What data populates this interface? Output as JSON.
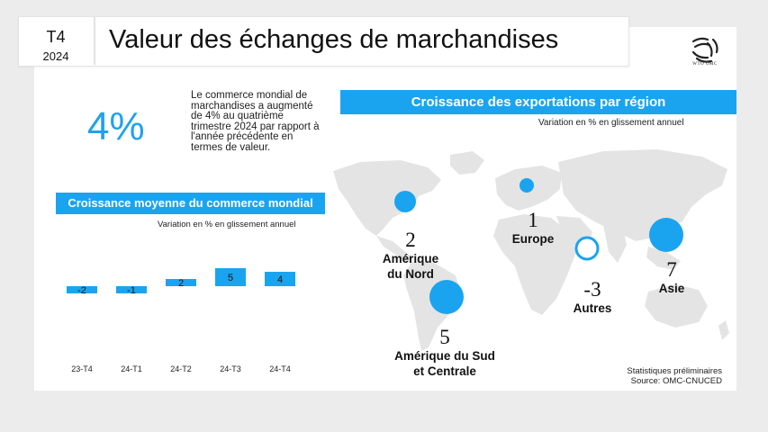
{
  "header": {
    "quarter": "T4",
    "year": "2024",
    "title": "Valeur des échanges de marchandises",
    "logo_text": "WTO OMC"
  },
  "highlight": {
    "value": "4%",
    "text": "Le commerce mondial de marchandises a augmenté de 4% au quatrième trimestre 2024 par rapport à l'année précédente en termes de valeur."
  },
  "left_panel": {
    "title": "Croissance moyenne du commerce mondial",
    "subtitle": "Variation en % en glissement annuel"
  },
  "right_panel": {
    "title": "Croissance des exportations par région",
    "subtitle": "Variation en % en glissement annuel"
  },
  "colors": {
    "accent": "#1aa4ef",
    "map": "#e4e4e4",
    "text": "#111111"
  },
  "chart_data": [
    {
      "type": "bar",
      "title": "Croissance moyenne du commerce mondial",
      "subtitle": "Variation en % en glissement annuel",
      "categories": [
        "23-T4",
        "24-T1",
        "24-T2",
        "24-T3",
        "24-T4"
      ],
      "values": [
        -2,
        -1,
        2,
        5,
        4
      ],
      "grid": false
    },
    {
      "type": "scatter",
      "title": "Croissance des exportations par région",
      "subtitle": "Variation en % en glissement annuel",
      "series": [
        {
          "name": "Amérique du Nord",
          "value": 2
        },
        {
          "name": "Europe",
          "value": 1
        },
        {
          "name": "Amérique du Sud et Centrale",
          "value": 5
        },
        {
          "name": "Autres",
          "value": -3
        },
        {
          "name": "Asie",
          "value": 7
        }
      ]
    }
  ],
  "regions": {
    "north_america": {
      "value": "2",
      "name_line1": "Amérique",
      "name_line2": "du Nord"
    },
    "europe": {
      "value": "1",
      "name_line1": "Europe"
    },
    "south_america": {
      "value": "5",
      "name_line1": "Amérique du Sud",
      "name_line2": "et Centrale"
    },
    "others": {
      "value": "-3",
      "name_line1": "Autres"
    },
    "asia": {
      "value": "7",
      "name_line1": "Asie"
    }
  },
  "footnote": {
    "line1": "Statistiques préliminaires",
    "line2": "Source: OMC-CNUCED"
  }
}
